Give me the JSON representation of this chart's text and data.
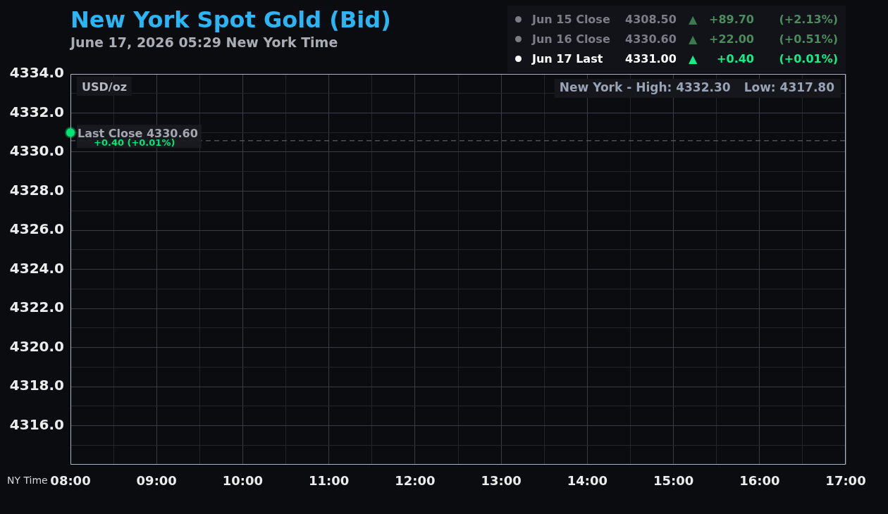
{
  "chart_data": {
    "type": "line",
    "title": "New York Spot Gold (Bid)",
    "subtitle": "June 17, 2026 05:29 New York Time",
    "xlabel": "NY Time",
    "x": [
      8
    ],
    "series": [
      {
        "color": "#00e676",
        "values": [
          4331.0
        ]
      }
    ],
    "xlim": [
      8,
      17
    ],
    "xticks": [
      {
        "value": 8,
        "label": "08:00"
      },
      {
        "value": 8.5,
        "label": null
      },
      {
        "value": 9,
        "label": "09:00"
      },
      {
        "value": 9.5,
        "label": null
      },
      {
        "value": 10,
        "label": "10:00"
      },
      {
        "value": 10.5,
        "label": null
      },
      {
        "value": 11,
        "label": "11:00"
      },
      {
        "value": 11.5,
        "label": null
      },
      {
        "value": 12,
        "label": "12:00"
      },
      {
        "value": 12.5,
        "label": null
      },
      {
        "value": 13,
        "label": "13:00"
      },
      {
        "value": 13.5,
        "label": null
      },
      {
        "value": 14,
        "label": "14:00"
      },
      {
        "value": 14.5,
        "label": null
      },
      {
        "value": 15,
        "label": "15:00"
      },
      {
        "value": 15.5,
        "label": null
      },
      {
        "value": 16,
        "label": "16:00"
      },
      {
        "value": 16.5,
        "label": null
      },
      {
        "value": 17,
        "label": "17:00"
      }
    ],
    "ylim": [
      4314,
      4334
    ],
    "yticks": [
      {
        "value": 4315,
        "label": null
      },
      {
        "value": 4316,
        "label": "4316.0"
      },
      {
        "value": 4317,
        "label": null
      },
      {
        "value": 4318,
        "label": "4318.0"
      },
      {
        "value": 4319,
        "label": null
      },
      {
        "value": 4320,
        "label": "4320.0"
      },
      {
        "value": 4321,
        "label": null
      },
      {
        "value": 4322,
        "label": "4322.0"
      },
      {
        "value": 4323,
        "label": null
      },
      {
        "value": 4324,
        "label": "4324.0"
      },
      {
        "value": 4325,
        "label": null
      },
      {
        "value": 4326,
        "label": "4326.0"
      },
      {
        "value": 4327,
        "label": null
      },
      {
        "value": 4328,
        "label": "4328.0"
      },
      {
        "value": 4329,
        "label": null
      },
      {
        "value": 4330,
        "label": "4330.0"
      },
      {
        "value": 4331,
        "label": null
      },
      {
        "value": 4332,
        "label": "4332.0"
      },
      {
        "value": 4333,
        "label": null
      },
      {
        "value": 4334,
        "label": "4334.0"
      }
    ],
    "grid": true,
    "marker": "circle",
    "ref_lines": [
      {
        "axis": "y",
        "value": 4330.6,
        "label": "Last Close 4330.60",
        "color": "#6b6f78",
        "line_style": "dashed"
      }
    ],
    "annotations": [
      "USD/oz",
      "New York - High: 4332.30",
      "Low: 4317.80",
      {
        "text": "+0.40 (+0.01%)",
        "x": 8,
        "y": 4331.0
      },
      "Jun 15 Close",
      "4308.50",
      "▲",
      "+89.70",
      "(+2.13%)",
      "Jun 16 Close",
      "4330.60",
      "▲",
      "+22.00",
      "(+0.51%)",
      "Jun 17 Last",
      "4331.00",
      "▲",
      "+0.40",
      "(+0.01%)"
    ]
  }
}
